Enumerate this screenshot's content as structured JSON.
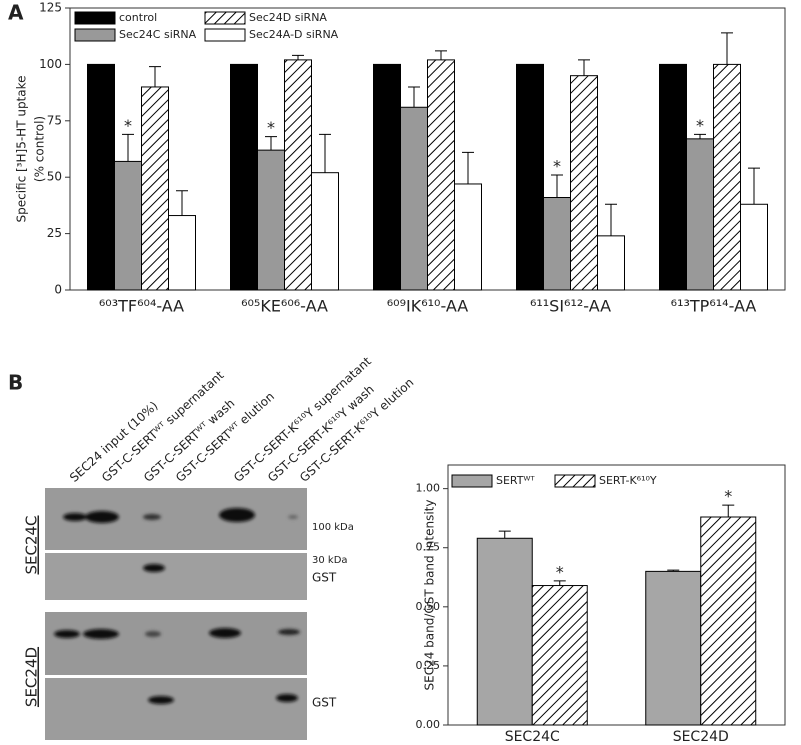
{
  "panels": {
    "a": "A",
    "b": "B"
  },
  "chart_data": [
    {
      "type": "bar",
      "y_label": [
        "Specific [³H]5-HT uptake",
        "(% control)"
      ],
      "categories": [
        "⁶⁰³TF⁶⁰⁴-AA",
        "⁶⁰⁵KE⁶⁰⁶-AA",
        "⁶⁰⁹IK⁶¹⁰-AA",
        "⁶¹¹SI⁶¹²-AA",
        "⁶¹³TP⁶¹⁴-AA"
      ],
      "series": [
        {
          "name": "control",
          "color": "#000000",
          "values": [
            100,
            100,
            100,
            100,
            100
          ]
        },
        {
          "name": "Sec24C siRNA",
          "color": "#999999",
          "values": [
            57,
            62,
            81,
            41,
            67
          ],
          "errors": [
            12,
            6,
            9,
            10,
            2
          ],
          "marker_labels": [
            "*",
            "*",
            null,
            "*",
            "*"
          ]
        },
        {
          "name": "Sec24D siRNA",
          "color": "#ffffff",
          "pattern": "hatch",
          "values": [
            90,
            102,
            102,
            95,
            100
          ],
          "errors": [
            9,
            2,
            4,
            7,
            14
          ]
        },
        {
          "name": "Sec24A-D siRNA",
          "color": "#ffffff",
          "values": [
            33,
            52,
            47,
            24,
            38
          ],
          "errors": [
            11,
            17,
            14,
            14,
            16
          ]
        }
      ],
      "ylim": [
        0,
        125
      ],
      "yticks": [
        0,
        25,
        50,
        75,
        100,
        125
      ],
      "grid": false,
      "legend": "upper left"
    },
    {
      "type": "bar",
      "y_label": [
        "SEC24 band/GST band intensity"
      ],
      "categories": [
        "SEC24C",
        "SEC24D"
      ],
      "series": [
        {
          "name": "SERTᵂᵀ",
          "color": "#a6a6a6",
          "values": [
            0.79,
            0.65
          ],
          "errors": [
            0.03,
            0.005
          ]
        },
        {
          "name": "SERT-K⁶¹⁰Y",
          "color": "#ffffff",
          "pattern": "hatch",
          "values": [
            0.59,
            0.88
          ],
          "errors": [
            0.02,
            0.05
          ],
          "marker_labels": [
            "*",
            "*"
          ]
        }
      ],
      "ylim": [
        0,
        1.1
      ],
      "yticks": [
        {
          "value": 0,
          "label": "0.00"
        },
        {
          "value": 0.25,
          "label": "0.25"
        },
        {
          "value": 0.5,
          "label": "0.50"
        },
        {
          "value": 0.75,
          "label": "0.75"
        },
        {
          "value": 1,
          "label": "1.00"
        }
      ],
      "grid": false,
      "legend": "upper left"
    }
  ],
  "blot": {
    "lanes": [
      "SEC24 input (10%)",
      "GST-C-SERTᵂᵀ supernatant",
      "GST-C-SERTᵂᵀ wash",
      "GST-C-SERTᵂᵀ elution",
      "GST-C-SERT-K⁶¹⁰Y supernatant",
      "GST-C-SERT-K⁶¹⁰Y wash",
      "GST-C-SERT-K⁶¹⁰Y elution"
    ],
    "rows": [
      "SEC24C",
      "SEC24D"
    ],
    "markers": [
      "100 kDa",
      "30 kDa"
    ],
    "gst": [
      "GST",
      "GST"
    ]
  }
}
